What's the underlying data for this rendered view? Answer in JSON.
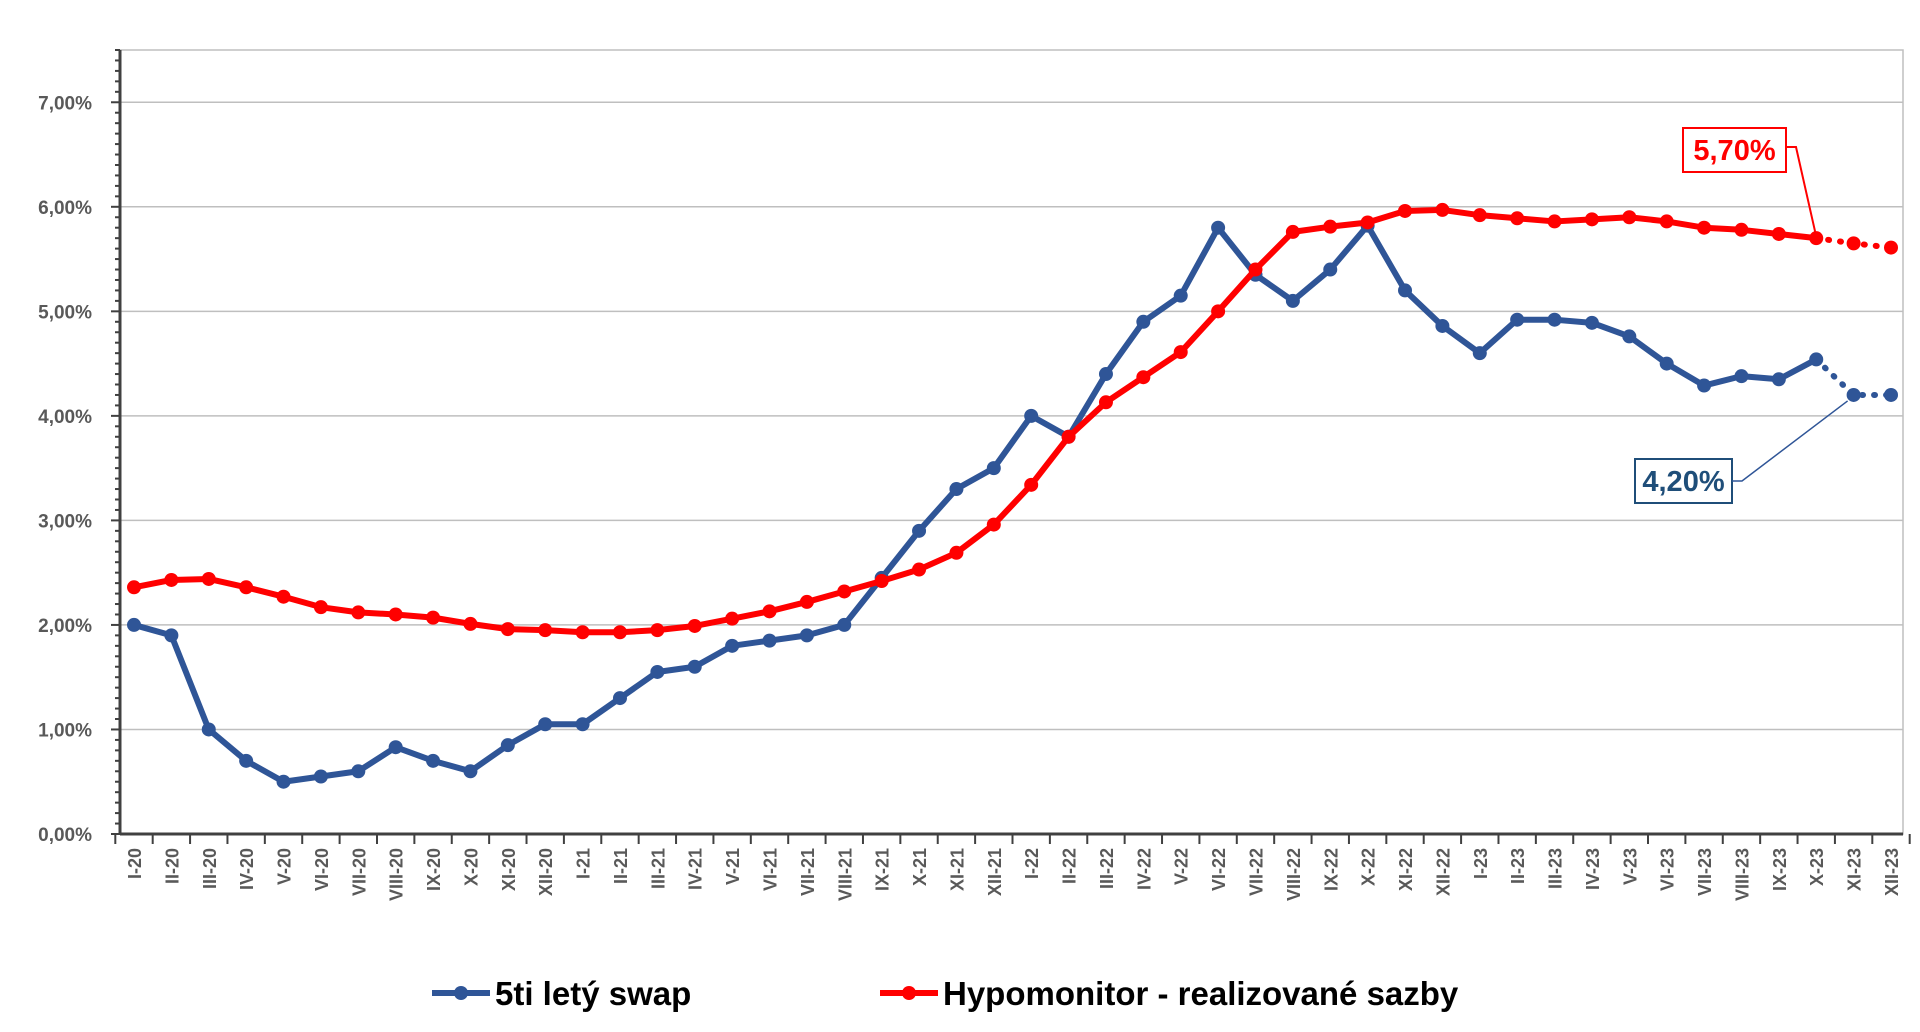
{
  "chart_data": {
    "type": "line",
    "categories": [
      "I-20",
      "II-20",
      "III-20",
      "IV-20",
      "V-20",
      "VI-20",
      "VII-20",
      "VIII-20",
      "IX-20",
      "X-20",
      "XI-20",
      "XII-20",
      "I-21",
      "II-21",
      "III-21",
      "IV-21",
      "V-21",
      "VI-21",
      "VII-21",
      "VIII-21",
      "IX-21",
      "X-21",
      "XI-21",
      "XII-21",
      "I-22",
      "II-22",
      "III-22",
      "IV-22",
      "V-22",
      "VI-22",
      "VII-22",
      "VIII-22",
      "IX-22",
      "X-22",
      "XI-22",
      "XII-22",
      "I-23",
      "II-23",
      "III-23",
      "IV-23",
      "V-23",
      "VI-23",
      "VII-23",
      "VIII-23",
      "IX-23",
      "X-23",
      "XI-23",
      "XII-23"
    ],
    "series": [
      {
        "name": "5ti letý swap",
        "color": "#2F5597",
        "values": [
          2.0,
          1.9,
          1.0,
          0.7,
          0.5,
          0.55,
          0.6,
          0.83,
          0.7,
          0.6,
          0.85,
          1.05,
          1.05,
          1.3,
          1.55,
          1.6,
          1.8,
          1.85,
          1.9,
          2.0,
          2.45,
          2.9,
          3.3,
          3.5,
          4.0,
          3.8,
          4.4,
          4.9,
          5.15,
          5.8,
          5.35,
          5.1,
          5.4,
          5.82,
          5.2,
          4.86,
          4.6,
          4.92,
          4.92,
          4.89,
          4.76,
          4.5,
          4.29,
          4.38,
          4.35,
          4.54,
          4.2,
          4.2
        ],
        "dotted_from_index": 45
      },
      {
        "name": "Hypomonitor - realizované sazby",
        "color": "#FF0000",
        "values": [
          2.36,
          2.43,
          2.44,
          2.36,
          2.27,
          2.17,
          2.12,
          2.1,
          2.07,
          2.01,
          1.96,
          1.95,
          1.93,
          1.93,
          1.95,
          1.99,
          2.06,
          2.13,
          2.22,
          2.32,
          2.42,
          2.53,
          2.69,
          2.96,
          3.34,
          3.8,
          4.13,
          4.37,
          4.61,
          5.0,
          5.4,
          5.76,
          5.81,
          5.85,
          5.96,
          5.97,
          5.92,
          5.89,
          5.86,
          5.88,
          5.9,
          5.86,
          5.8,
          5.78,
          5.74,
          5.7,
          5.65,
          5.61
        ],
        "dotted_from_index": 45
      }
    ],
    "ylim": [
      0,
      7.5
    ],
    "yticks": [
      "0,00%",
      "1,00%",
      "2,00%",
      "3,00%",
      "4,00%",
      "5,00%",
      "6,00%",
      "7,00%"
    ],
    "ytick_values": [
      0,
      1,
      2,
      3,
      4,
      5,
      6,
      7
    ],
    "grid": true,
    "legend_position": "bottom",
    "annotations": [
      {
        "text": "5,70%",
        "series": 1,
        "index": 45,
        "color": "#FF0000"
      },
      {
        "text": "4,20%",
        "series": 0,
        "index": 46,
        "color": "#1F4E79"
      }
    ]
  }
}
